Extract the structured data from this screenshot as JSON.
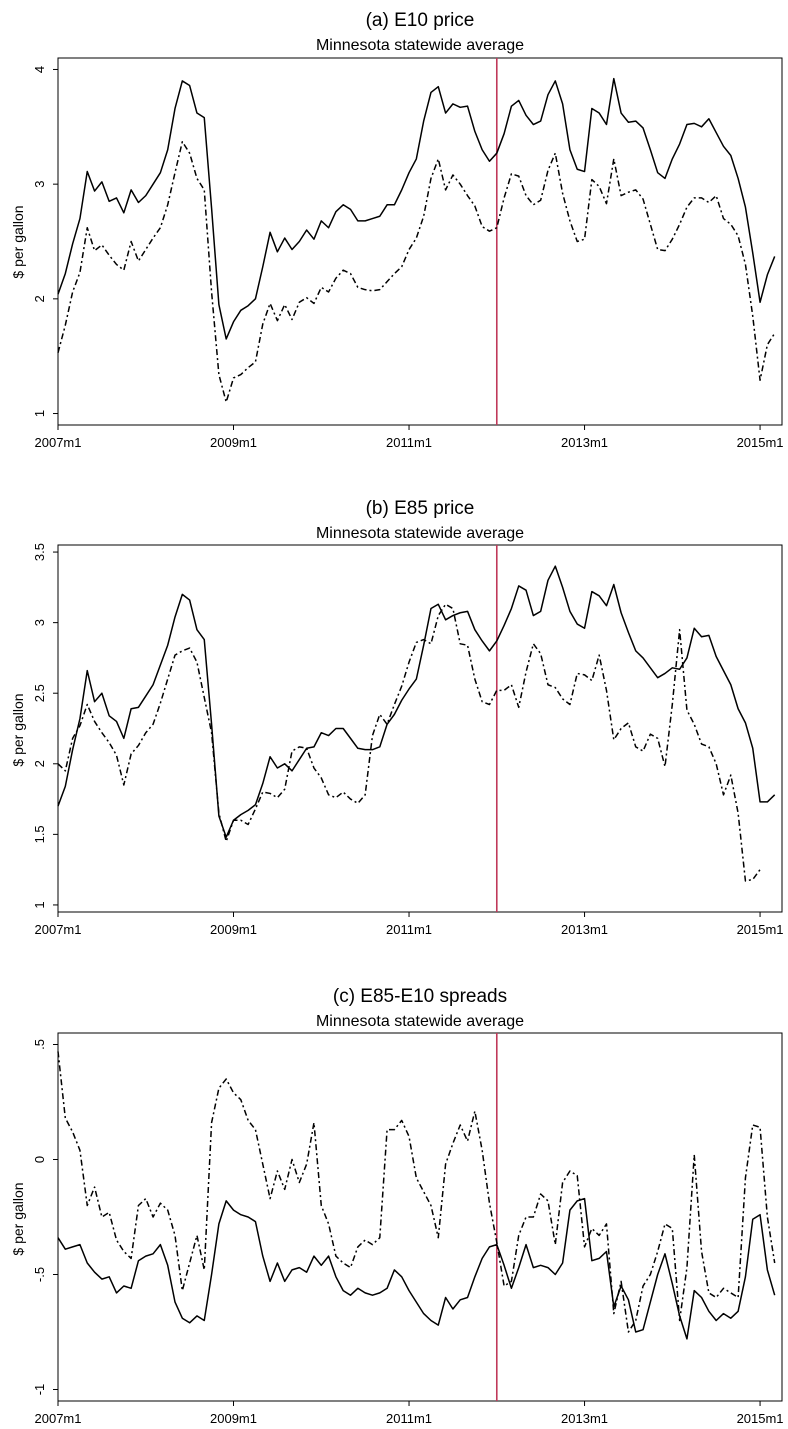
{
  "colors": {
    "solid": "#000000",
    "dashed": "#000000",
    "vline": "#c0395a",
    "frame": "#000000"
  },
  "chart_data": [
    {
      "type": "line",
      "title": "(a) E10 price",
      "subtitle": "Minnesota statewide average",
      "ylabel": "$ per gallon",
      "xlim": [
        0,
        99
      ],
      "ylim": [
        0.9,
        4.1
      ],
      "yticks": [
        1,
        2,
        3,
        4
      ],
      "ytick_labels": [
        "1",
        "2",
        "3",
        "4"
      ],
      "xticks": [
        0,
        24,
        48,
        72,
        96
      ],
      "xtick_labels": [
        "2007m1",
        "2009m1",
        "2011m1",
        "2013m1",
        "2015m1"
      ],
      "vline": 60,
      "grid": false,
      "series": [
        {
          "style": "solid",
          "values": [
            2.04,
            2.22,
            2.48,
            2.7,
            3.11,
            2.94,
            3.02,
            2.85,
            2.88,
            2.75,
            2.95,
            2.84,
            2.9,
            3.0,
            3.1,
            3.3,
            3.66,
            3.9,
            3.86,
            3.62,
            3.58,
            2.79,
            1.95,
            1.65,
            1.8,
            1.9,
            1.94,
            2.0,
            2.28,
            2.58,
            2.41,
            2.53,
            2.43,
            2.5,
            2.6,
            2.52,
            2.68,
            2.62,
            2.76,
            2.82,
            2.78,
            2.68,
            2.68,
            2.7,
            2.72,
            2.82,
            2.82,
            2.95,
            3.1,
            3.22,
            3.55,
            3.8,
            3.85,
            3.62,
            3.7,
            3.67,
            3.68,
            3.46,
            3.3,
            3.2,
            3.27,
            3.44,
            3.68,
            3.73,
            3.6,
            3.52,
            3.55,
            3.78,
            3.9,
            3.7,
            3.3,
            3.13,
            3.11,
            3.66,
            3.62,
            3.52,
            3.92,
            3.62,
            3.54,
            3.55,
            3.49,
            3.3,
            3.1,
            3.05,
            3.22,
            3.35,
            3.52,
            3.53,
            3.5,
            3.57,
            3.45,
            3.33,
            3.25,
            3.05,
            2.8,
            2.4,
            1.97,
            2.21,
            2.37
          ]
        },
        {
          "style": "dashed",
          "values": [
            1.53,
            1.77,
            2.06,
            2.23,
            2.62,
            2.42,
            2.47,
            2.38,
            2.3,
            2.25,
            2.5,
            2.33,
            2.43,
            2.53,
            2.62,
            2.82,
            3.1,
            3.37,
            3.27,
            3.05,
            2.95,
            2.06,
            1.34,
            1.1,
            1.31,
            1.34,
            1.4,
            1.45,
            1.78,
            1.96,
            1.81,
            1.95,
            1.82,
            1.97,
            2.01,
            1.96,
            2.1,
            2.06,
            2.18,
            2.25,
            2.22,
            2.1,
            2.08,
            2.07,
            2.08,
            2.15,
            2.22,
            2.28,
            2.43,
            2.53,
            2.72,
            3.05,
            3.22,
            2.95,
            3.08,
            3.0,
            2.9,
            2.81,
            2.63,
            2.59,
            2.62,
            2.88,
            3.09,
            3.07,
            2.9,
            2.82,
            2.86,
            3.12,
            3.27,
            2.92,
            2.68,
            2.5,
            2.52,
            3.04,
            2.98,
            2.83,
            3.22,
            2.9,
            2.93,
            2.95,
            2.87,
            2.65,
            2.43,
            2.42,
            2.52,
            2.65,
            2.8,
            2.88,
            2.88,
            2.84,
            2.9,
            2.7,
            2.65,
            2.55,
            2.3,
            1.85,
            1.29,
            1.6,
            1.7
          ]
        }
      ]
    },
    {
      "type": "line",
      "title": "(b) E85 price",
      "subtitle": "Minnesota statewide average",
      "ylabel": "$ per gallon",
      "xlim": [
        0,
        99
      ],
      "ylim": [
        0.95,
        3.55
      ],
      "yticks": [
        1,
        1.5,
        2,
        2.5,
        3,
        3.5
      ],
      "ytick_labels": [
        "1",
        "1.5",
        "2",
        "2.5",
        "3",
        "3.5"
      ],
      "xticks": [
        0,
        24,
        48,
        72,
        96
      ],
      "xtick_labels": [
        "2007m1",
        "2009m1",
        "2011m1",
        "2013m1",
        "2015m1"
      ],
      "vline": 60,
      "grid": false,
      "series": [
        {
          "style": "solid",
          "values": [
            1.7,
            1.84,
            2.1,
            2.32,
            2.66,
            2.44,
            2.5,
            2.34,
            2.3,
            2.18,
            2.39,
            2.4,
            2.48,
            2.56,
            2.7,
            2.84,
            3.04,
            3.2,
            3.16,
            2.95,
            2.88,
            2.28,
            1.63,
            1.48,
            1.6,
            1.64,
            1.67,
            1.71,
            1.86,
            2.05,
            1.97,
            2.0,
            1.95,
            2.03,
            2.11,
            2.12,
            2.22,
            2.2,
            2.25,
            2.25,
            2.18,
            2.11,
            2.1,
            2.1,
            2.12,
            2.28,
            2.35,
            2.45,
            2.53,
            2.6,
            2.84,
            3.1,
            3.13,
            3.02,
            3.05,
            3.07,
            3.08,
            2.95,
            2.87,
            2.8,
            2.87,
            2.98,
            3.1,
            3.26,
            3.23,
            3.05,
            3.08,
            3.3,
            3.4,
            3.25,
            3.08,
            2.99,
            2.96,
            3.22,
            3.19,
            3.12,
            3.27,
            3.07,
            2.93,
            2.8,
            2.75,
            2.68,
            2.61,
            2.64,
            2.68,
            2.67,
            2.75,
            2.96,
            2.9,
            2.91,
            2.76,
            2.66,
            2.56,
            2.39,
            2.29,
            2.11,
            1.73,
            1.73,
            1.78
          ]
        },
        {
          "style": "dashed",
          "values": [
            2.0,
            1.95,
            2.18,
            2.27,
            2.42,
            2.3,
            2.22,
            2.15,
            2.06,
            1.85,
            2.07,
            2.13,
            2.22,
            2.28,
            2.43,
            2.6,
            2.77,
            2.8,
            2.82,
            2.72,
            2.47,
            2.22,
            1.65,
            1.45,
            1.6,
            1.6,
            1.57,
            1.68,
            1.8,
            1.79,
            1.76,
            1.82,
            2.09,
            2.12,
            2.11,
            1.97,
            1.9,
            1.78,
            1.76,
            1.8,
            1.75,
            1.72,
            1.78,
            2.2,
            2.35,
            2.28,
            2.42,
            2.55,
            2.72,
            2.86,
            2.88,
            2.85,
            3.05,
            3.13,
            3.1,
            2.85,
            2.84,
            2.6,
            2.44,
            2.42,
            2.52,
            2.52,
            2.56,
            2.4,
            2.65,
            2.85,
            2.78,
            2.56,
            2.54,
            2.46,
            2.42,
            2.64,
            2.63,
            2.59,
            2.77,
            2.52,
            2.17,
            2.25,
            2.29,
            2.12,
            2.09,
            2.21,
            2.18,
            1.98,
            2.42,
            2.95,
            2.38,
            2.28,
            2.14,
            2.12,
            2.0,
            1.78,
            1.92,
            1.65,
            1.17,
            1.18,
            1.25
          ]
        }
      ]
    },
    {
      "type": "line",
      "title": "(c) E85-E10 spreads",
      "subtitle": "Minnesota statewide average",
      "ylabel": "$ per gallon",
      "xlim": [
        0,
        99
      ],
      "ylim": [
        -1.05,
        0.55
      ],
      "yticks": [
        -1,
        -0.5,
        0,
        0.5
      ],
      "ytick_labels": [
        "-1",
        "-.5",
        "0",
        ".5"
      ],
      "xticks": [
        0,
        24,
        48,
        72,
        96
      ],
      "xtick_labels": [
        "2007m1",
        "2009m1",
        "2011m1",
        "2013m1",
        "2015m1"
      ],
      "vline": 60,
      "grid": false,
      "series": [
        {
          "style": "solid",
          "values": [
            -0.34,
            -0.39,
            -0.38,
            -0.37,
            -0.45,
            -0.49,
            -0.52,
            -0.51,
            -0.58,
            -0.55,
            -0.56,
            -0.44,
            -0.42,
            -0.41,
            -0.37,
            -0.46,
            -0.62,
            -0.69,
            -0.71,
            -0.68,
            -0.7,
            -0.5,
            -0.28,
            -0.18,
            -0.22,
            -0.24,
            -0.25,
            -0.27,
            -0.42,
            -0.53,
            -0.45,
            -0.53,
            -0.48,
            -0.47,
            -0.49,
            -0.42,
            -0.46,
            -0.42,
            -0.51,
            -0.57,
            -0.59,
            -0.56,
            -0.58,
            -0.59,
            -0.58,
            -0.56,
            -0.48,
            -0.51,
            -0.57,
            -0.62,
            -0.67,
            -0.7,
            -0.72,
            -0.6,
            -0.65,
            -0.61,
            -0.6,
            -0.51,
            -0.43,
            -0.38,
            -0.37,
            -0.46,
            -0.56,
            -0.47,
            -0.37,
            -0.47,
            -0.46,
            -0.47,
            -0.5,
            -0.45,
            -0.22,
            -0.18,
            -0.17,
            -0.44,
            -0.43,
            -0.4,
            -0.64,
            -0.55,
            -0.61,
            -0.75,
            -0.74,
            -0.62,
            -0.5,
            -0.41,
            -0.54,
            -0.68,
            -0.78,
            -0.57,
            -0.6,
            -0.66,
            -0.7,
            -0.67,
            -0.69,
            -0.66,
            -0.51,
            -0.26,
            -0.24,
            -0.48,
            -0.59
          ]
        },
        {
          "style": "dashed",
          "values": [
            0.47,
            0.18,
            0.12,
            0.04,
            -0.2,
            -0.12,
            -0.25,
            -0.23,
            -0.35,
            -0.4,
            -0.43,
            -0.2,
            -0.17,
            -0.25,
            -0.19,
            -0.22,
            -0.33,
            -0.57,
            -0.45,
            -0.33,
            -0.48,
            0.16,
            0.31,
            0.35,
            0.29,
            0.26,
            0.17,
            0.13,
            -0.02,
            -0.17,
            -0.05,
            -0.13,
            0.0,
            -0.1,
            -0.02,
            0.16,
            -0.2,
            -0.28,
            -0.42,
            -0.45,
            -0.47,
            -0.38,
            -0.35,
            -0.37,
            -0.34,
            0.13,
            0.13,
            0.17,
            0.1,
            -0.08,
            -0.14,
            -0.2,
            -0.34,
            -0.02,
            0.07,
            0.15,
            0.08,
            0.21,
            0.04,
            -0.19,
            -0.36,
            -0.55,
            -0.53,
            -0.33,
            -0.25,
            -0.25,
            -0.15,
            -0.18,
            -0.37,
            -0.1,
            -0.05,
            -0.07,
            -0.38,
            -0.3,
            -0.33,
            -0.28,
            -0.67,
            -0.53,
            -0.75,
            -0.7,
            -0.55,
            -0.5,
            -0.4,
            -0.28,
            -0.3,
            -0.7,
            -0.47,
            0.02,
            -0.4,
            -0.58,
            -0.6,
            -0.56,
            -0.58,
            -0.6,
            -0.08,
            0.15,
            0.14,
            -0.25,
            -0.45
          ]
        }
      ]
    }
  ]
}
